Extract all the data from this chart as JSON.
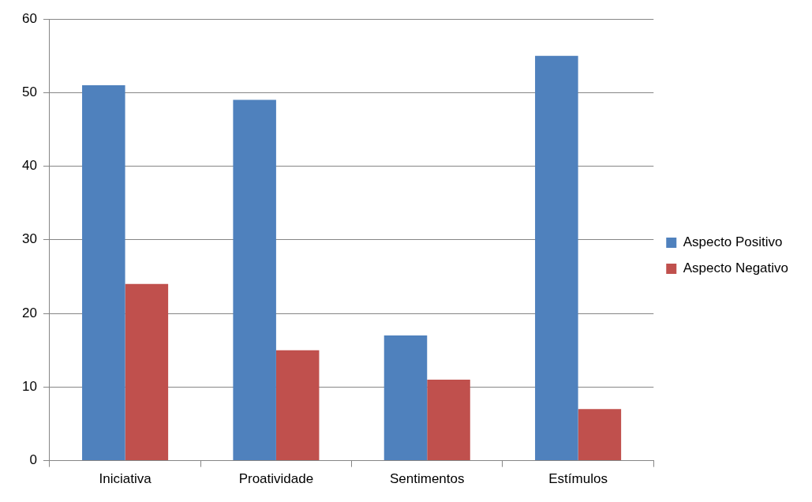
{
  "chart_data": {
    "type": "bar",
    "categories": [
      "Iniciativa",
      "Proatividade",
      "Sentimentos",
      "Estímulos"
    ],
    "series": [
      {
        "name": "Aspecto Positivo",
        "color": "#4f81bd",
        "values": [
          51,
          49,
          17,
          55
        ]
      },
      {
        "name": "Aspecto Negativo",
        "color": "#c0504d",
        "values": [
          24,
          15,
          11,
          7
        ]
      }
    ],
    "ylim": [
      0,
      60
    ],
    "yticks": [
      0,
      10,
      20,
      30,
      40,
      50,
      60
    ],
    "grid": "y",
    "legend": "right"
  }
}
